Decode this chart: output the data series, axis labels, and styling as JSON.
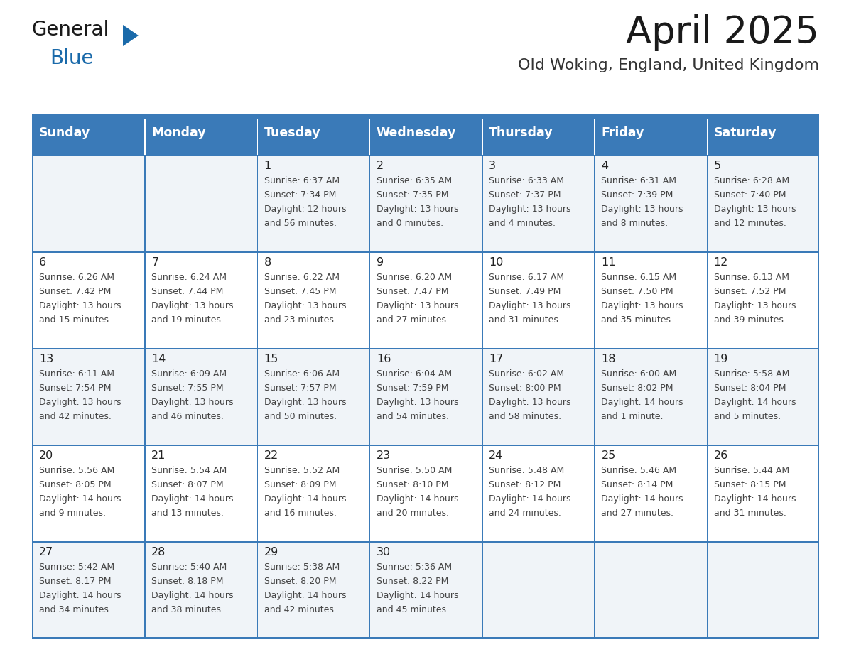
{
  "title": "April 2025",
  "subtitle": "Old Woking, England, United Kingdom",
  "days_of_week": [
    "Sunday",
    "Monday",
    "Tuesday",
    "Wednesday",
    "Thursday",
    "Friday",
    "Saturday"
  ],
  "header_bg": "#3a7ab8",
  "header_text": "#ffffff",
  "row_bg_light": "#f0f4f8",
  "row_bg_white": "#ffffff",
  "border_color": "#3a7ab8",
  "title_color": "#1a1a1a",
  "subtitle_color": "#333333",
  "num_color": "#222222",
  "cell_text_color": "#444444",
  "calendar": [
    [
      null,
      null,
      {
        "day": "1",
        "sunrise": "6:37 AM",
        "sunset": "7:34 PM",
        "daylight": "12 hours",
        "daylight2": "and 56 minutes."
      },
      {
        "day": "2",
        "sunrise": "6:35 AM",
        "sunset": "7:35 PM",
        "daylight": "13 hours",
        "daylight2": "and 0 minutes."
      },
      {
        "day": "3",
        "sunrise": "6:33 AM",
        "sunset": "7:37 PM",
        "daylight": "13 hours",
        "daylight2": "and 4 minutes."
      },
      {
        "day": "4",
        "sunrise": "6:31 AM",
        "sunset": "7:39 PM",
        "daylight": "13 hours",
        "daylight2": "and 8 minutes."
      },
      {
        "day": "5",
        "sunrise": "6:28 AM",
        "sunset": "7:40 PM",
        "daylight": "13 hours",
        "daylight2": "and 12 minutes."
      }
    ],
    [
      {
        "day": "6",
        "sunrise": "6:26 AM",
        "sunset": "7:42 PM",
        "daylight": "13 hours",
        "daylight2": "and 15 minutes."
      },
      {
        "day": "7",
        "sunrise": "6:24 AM",
        "sunset": "7:44 PM",
        "daylight": "13 hours",
        "daylight2": "and 19 minutes."
      },
      {
        "day": "8",
        "sunrise": "6:22 AM",
        "sunset": "7:45 PM",
        "daylight": "13 hours",
        "daylight2": "and 23 minutes."
      },
      {
        "day": "9",
        "sunrise": "6:20 AM",
        "sunset": "7:47 PM",
        "daylight": "13 hours",
        "daylight2": "and 27 minutes."
      },
      {
        "day": "10",
        "sunrise": "6:17 AM",
        "sunset": "7:49 PM",
        "daylight": "13 hours",
        "daylight2": "and 31 minutes."
      },
      {
        "day": "11",
        "sunrise": "6:15 AM",
        "sunset": "7:50 PM",
        "daylight": "13 hours",
        "daylight2": "and 35 minutes."
      },
      {
        "day": "12",
        "sunrise": "6:13 AM",
        "sunset": "7:52 PM",
        "daylight": "13 hours",
        "daylight2": "and 39 minutes."
      }
    ],
    [
      {
        "day": "13",
        "sunrise": "6:11 AM",
        "sunset": "7:54 PM",
        "daylight": "13 hours",
        "daylight2": "and 42 minutes."
      },
      {
        "day": "14",
        "sunrise": "6:09 AM",
        "sunset": "7:55 PM",
        "daylight": "13 hours",
        "daylight2": "and 46 minutes."
      },
      {
        "day": "15",
        "sunrise": "6:06 AM",
        "sunset": "7:57 PM",
        "daylight": "13 hours",
        "daylight2": "and 50 minutes."
      },
      {
        "day": "16",
        "sunrise": "6:04 AM",
        "sunset": "7:59 PM",
        "daylight": "13 hours",
        "daylight2": "and 54 minutes."
      },
      {
        "day": "17",
        "sunrise": "6:02 AM",
        "sunset": "8:00 PM",
        "daylight": "13 hours",
        "daylight2": "and 58 minutes."
      },
      {
        "day": "18",
        "sunrise": "6:00 AM",
        "sunset": "8:02 PM",
        "daylight": "14 hours",
        "daylight2": "and 1 minute."
      },
      {
        "day": "19",
        "sunrise": "5:58 AM",
        "sunset": "8:04 PM",
        "daylight": "14 hours",
        "daylight2": "and 5 minutes."
      }
    ],
    [
      {
        "day": "20",
        "sunrise": "5:56 AM",
        "sunset": "8:05 PM",
        "daylight": "14 hours",
        "daylight2": "and 9 minutes."
      },
      {
        "day": "21",
        "sunrise": "5:54 AM",
        "sunset": "8:07 PM",
        "daylight": "14 hours",
        "daylight2": "and 13 minutes."
      },
      {
        "day": "22",
        "sunrise": "5:52 AM",
        "sunset": "8:09 PM",
        "daylight": "14 hours",
        "daylight2": "and 16 minutes."
      },
      {
        "day": "23",
        "sunrise": "5:50 AM",
        "sunset": "8:10 PM",
        "daylight": "14 hours",
        "daylight2": "and 20 minutes."
      },
      {
        "day": "24",
        "sunrise": "5:48 AM",
        "sunset": "8:12 PM",
        "daylight": "14 hours",
        "daylight2": "and 24 minutes."
      },
      {
        "day": "25",
        "sunrise": "5:46 AM",
        "sunset": "8:14 PM",
        "daylight": "14 hours",
        "daylight2": "and 27 minutes."
      },
      {
        "day": "26",
        "sunrise": "5:44 AM",
        "sunset": "8:15 PM",
        "daylight": "14 hours",
        "daylight2": "and 31 minutes."
      }
    ],
    [
      {
        "day": "27",
        "sunrise": "5:42 AM",
        "sunset": "8:17 PM",
        "daylight": "14 hours",
        "daylight2": "and 34 minutes."
      },
      {
        "day": "28",
        "sunrise": "5:40 AM",
        "sunset": "8:18 PM",
        "daylight": "14 hours",
        "daylight2": "and 38 minutes."
      },
      {
        "day": "29",
        "sunrise": "5:38 AM",
        "sunset": "8:20 PM",
        "daylight": "14 hours",
        "daylight2": "and 42 minutes."
      },
      {
        "day": "30",
        "sunrise": "5:36 AM",
        "sunset": "8:22 PM",
        "daylight": "14 hours",
        "daylight2": "and 45 minutes."
      },
      null,
      null,
      null
    ]
  ],
  "logo_general_color": "#1a1a1a",
  "logo_blue_color": "#1a6aaa",
  "logo_triangle_color": "#1a6aaa"
}
